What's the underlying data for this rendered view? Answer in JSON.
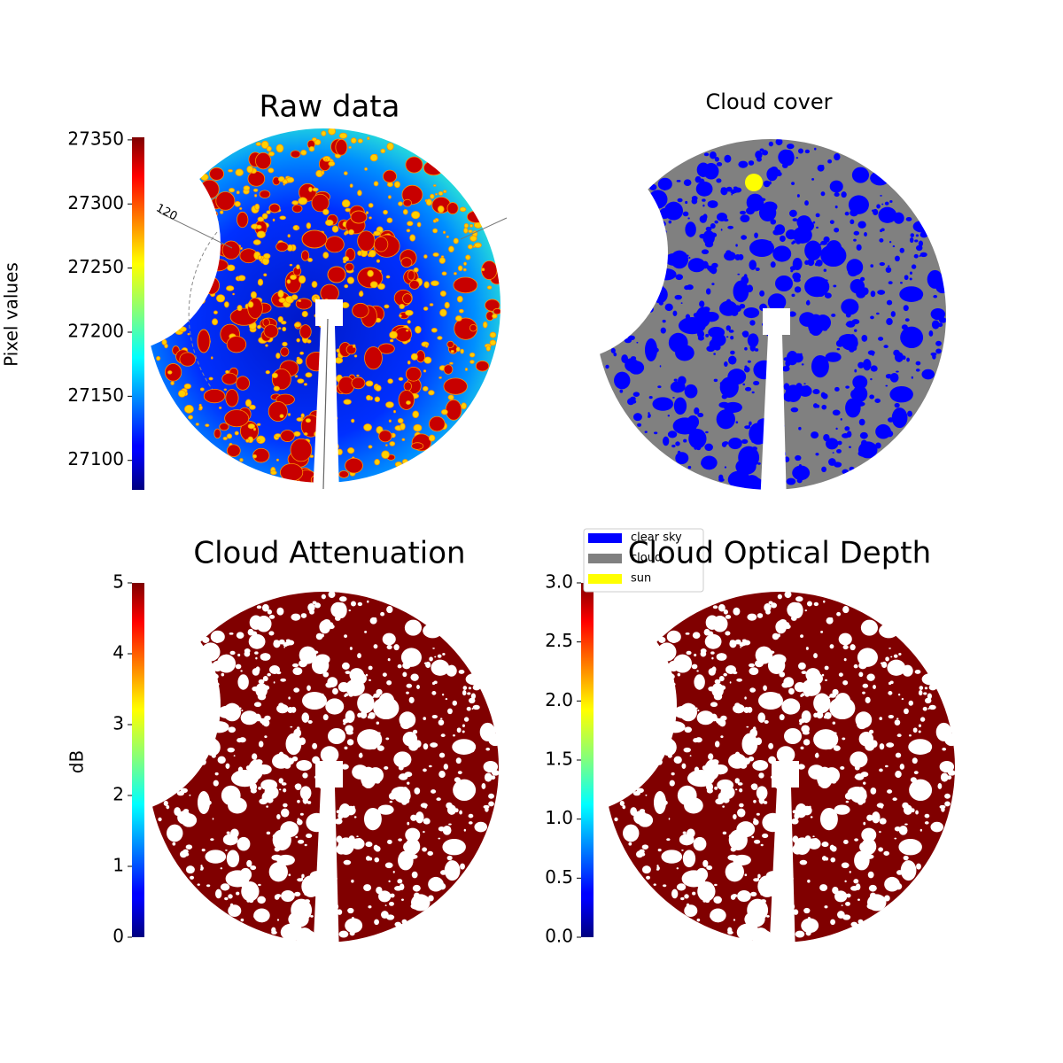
{
  "chart_data": [
    {
      "type": "image",
      "title": "Raw data",
      "annotation": "120",
      "colorbar": {
        "label": "Pixel values",
        "colormap": "jet",
        "lim": [
          27077,
          27352
        ],
        "ticks": [
          27100,
          27150,
          27200,
          27250,
          27300,
          27350
        ]
      }
    },
    {
      "type": "image",
      "title": "Cloud cover",
      "legend": [
        {
          "label": "clear sky",
          "color": "#0000ff"
        },
        {
          "label": "cloud",
          "color": "#808080"
        },
        {
          "label": "sun",
          "color": "#ffff00"
        }
      ]
    },
    {
      "type": "image",
      "title": "Cloud Attenuation",
      "colorbar": {
        "label": "dB",
        "colormap": "jet",
        "lim": [
          0,
          5
        ],
        "ticks": [
          0,
          1,
          2,
          3,
          4,
          5
        ]
      }
    },
    {
      "type": "image",
      "title": "Cloud Optical Depth",
      "colorbar": {
        "colormap": "jet",
        "lim": [
          0,
          3
        ],
        "ticks": [
          {
            "value": 0,
            "label": "0.0"
          },
          0.5,
          {
            "value": 1,
            "label": "1.0"
          },
          1.5,
          {
            "value": 2,
            "label": "2.0"
          },
          2.5,
          {
            "value": 3,
            "label": "3.0"
          }
        ]
      }
    }
  ]
}
